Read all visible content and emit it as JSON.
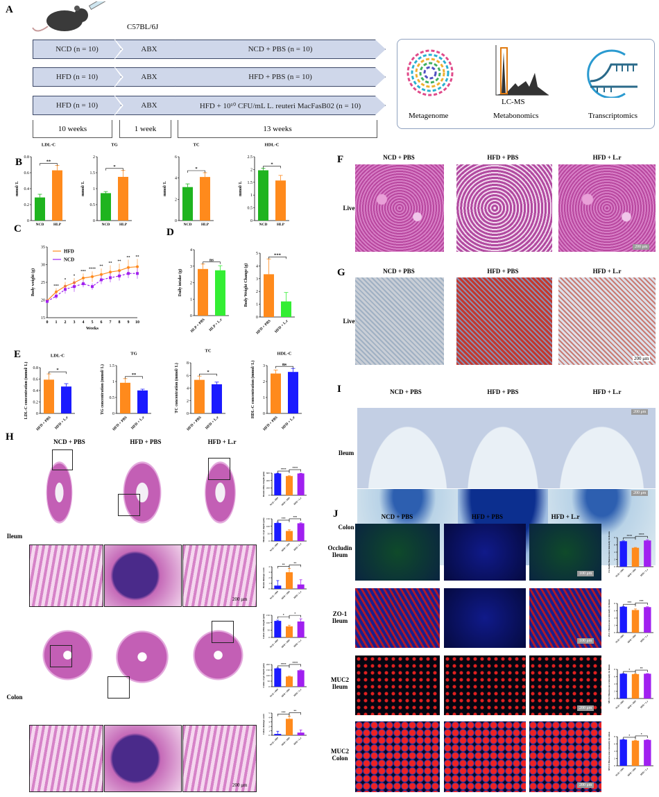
{
  "panels": {
    "A": "A",
    "B": "B",
    "C": "C",
    "D": "D",
    "E": "E",
    "F": "F",
    "G": "G",
    "H": "H",
    "I": "I",
    "J": "J"
  },
  "panelA": {
    "strain": "C57BL/6J",
    "rows": [
      [
        "NCD (n = 10)",
        "ABX",
        "NCD + PBS (n = 10)"
      ],
      [
        "HFD (n = 10)",
        "ABX",
        "HFD + PBS (n = 10)"
      ],
      [
        "HFD (n = 10)",
        "ABX",
        "HFD + 10¹⁰ CFU/mL L. reuteri MacFasB02 (n = 10)"
      ]
    ],
    "durations": [
      "10 weeks",
      "1 week",
      "13 weeks"
    ],
    "omics": {
      "metagenome": "Metagenome",
      "lcms": "LC-MS",
      "metabonomics": "Metabonomics",
      "transcriptomics": "Transcriptomics"
    }
  },
  "groups": {
    "ncd": "NCD + PBS",
    "hfd": "HFD + PBS",
    "lr": "HFD + L.r"
  },
  "tissues": {
    "liver": "Liver",
    "ileum": "Ileum",
    "colon": "Colon",
    "occludin": "Occludin Ileum",
    "zo1": "ZO-1 Ileum",
    "muc2i": "MUC2 Ileum",
    "muc2c": "MUC2 Colon"
  },
  "scales": {
    "f": "200 μm",
    "g": "200 μm",
    "i": "200 μm",
    "h": "200 μm",
    "j1": "100 μm",
    "j2": "100 μm",
    "j3": "200 μm",
    "j4": "200 μm"
  },
  "colors": {
    "green": "#1fb41f",
    "orange": "#ff8a1c",
    "blue": "#1a1aff",
    "purple": "#a020f0",
    "lime": "#33ee33"
  },
  "chart_data": [
    {
      "id": "b1",
      "type": "bar",
      "title": "LDL-C",
      "ylabel": "mmol/ L",
      "categories": [
        "NCD",
        "HLP"
      ],
      "values": [
        0.29,
        0.63
      ],
      "errors": [
        0.04,
        0.06
      ],
      "colors": [
        "#1fb41f",
        "#ff8a1c"
      ],
      "ylim": [
        0,
        0.8
      ],
      "ticks": [
        0,
        0.2,
        0.4,
        0.6,
        0.8
      ],
      "sig": [
        "**"
      ]
    },
    {
      "id": "b2",
      "type": "bar",
      "title": "TG",
      "ylabel": "mmol/ L",
      "categories": [
        "NCD",
        "HLP"
      ],
      "values": [
        0.86,
        1.37
      ],
      "errors": [
        0.05,
        0.2
      ],
      "colors": [
        "#1fb41f",
        "#ff8a1c"
      ],
      "ylim": [
        0,
        2
      ],
      "ticks": [
        0,
        0.5,
        1.0,
        1.5,
        2.0
      ],
      "sig": [
        "*"
      ]
    },
    {
      "id": "b3",
      "type": "bar",
      "title": "TC",
      "ylabel": "mmol/ L",
      "categories": [
        "NCD",
        "HLP"
      ],
      "values": [
        3.15,
        4.1
      ],
      "errors": [
        0.3,
        0.4
      ],
      "colors": [
        "#1fb41f",
        "#ff8a1c"
      ],
      "ylim": [
        0,
        6
      ],
      "ticks": [
        0,
        2,
        4,
        6
      ],
      "sig": [
        "*"
      ]
    },
    {
      "id": "b4",
      "type": "bar",
      "title": "HDL-C",
      "ylabel": "mmol/ L",
      "categories": [
        "NCD",
        "HLP"
      ],
      "values": [
        1.97,
        1.57
      ],
      "errors": [
        0.08,
        0.2
      ],
      "colors": [
        "#1fb41f",
        "#ff8a1c"
      ],
      "ylim": [
        0,
        2.5
      ],
      "ticks": [
        0,
        0.5,
        1.0,
        1.5,
        2.0,
        2.5
      ],
      "sig": [
        "*"
      ]
    },
    {
      "id": "c",
      "type": "line",
      "xlabel": "Weeks",
      "ylabel": "Body weight (g)",
      "x": [
        0,
        1,
        2,
        3,
        4,
        5,
        6,
        7,
        8,
        9,
        10
      ],
      "ylim": [
        15,
        35
      ],
      "ticks": [
        15,
        20,
        25,
        30,
        35
      ],
      "series": [
        {
          "name": "HFD",
          "color": "#ff8a1c",
          "values": [
            19.8,
            22.3,
            23.9,
            24.9,
            26.2,
            26.6,
            27.2,
            27.9,
            28.3,
            29.2,
            29.4
          ],
          "errors": [
            0.5,
            1,
            1.2,
            1.3,
            1.3,
            1.5,
            1.7,
            1.9,
            2,
            2.2,
            2.2
          ]
        },
        {
          "name": "NCD",
          "color": "#a020f0",
          "values": [
            19.6,
            21.1,
            23.0,
            23.8,
            24.6,
            23.8,
            25.7,
            26.3,
            26.8,
            27.5,
            27.5
          ],
          "errors": [
            0.5,
            0.8,
            1.2,
            1.5,
            1,
            0.9,
            1.2,
            1.3,
            1.3,
            1.3,
            1.5
          ]
        }
      ],
      "sig": [
        "",
        "***",
        "*",
        "*",
        "***",
        "****",
        "**",
        "**",
        "**",
        "**",
        "**"
      ],
      "legend": "top-left"
    },
    {
      "id": "d1",
      "type": "bar",
      "ylabel": "Daily intake (g)",
      "categories": [
        "HLP + PBS",
        "HLP + L.r"
      ],
      "values": [
        2.83,
        2.75
      ],
      "errors": [
        0.3,
        0.28
      ],
      "colors": [
        "#ff8a1c",
        "#33ee33"
      ],
      "ylim": [
        0,
        4
      ],
      "ticks": [
        0,
        1,
        2,
        3,
        4
      ],
      "sig": [
        "ns"
      ],
      "rot": true
    },
    {
      "id": "d2",
      "type": "bar",
      "ylabel": "Body Weight Change (g)",
      "categories": [
        "HFD + PBS",
        "HFD + L.r"
      ],
      "values": [
        3.35,
        1.22
      ],
      "errors": [
        1.2,
        0.7
      ],
      "colors": [
        "#ff8a1c",
        "#33ee33"
      ],
      "ylim": [
        0,
        5
      ],
      "ticks": [
        0,
        1,
        2,
        3,
        4,
        5
      ],
      "sig": [
        "***"
      ],
      "rot": true
    },
    {
      "id": "e1",
      "type": "bar",
      "title": "LDL-C",
      "ylabel": "LDL-C concentration (mmol/ L)",
      "categories": [
        "HFD + PBS",
        "HFD + L.r"
      ],
      "values": [
        0.59,
        0.47
      ],
      "errors": [
        0.1,
        0.05
      ],
      "colors": [
        "#ff8a1c",
        "#1a1aff"
      ],
      "ylim": [
        0,
        0.8
      ],
      "ticks": [
        0,
        0.2,
        0.4,
        0.6,
        0.8
      ],
      "sig": [
        "*"
      ],
      "rot": true
    },
    {
      "id": "e2",
      "type": "bar",
      "title": "TG",
      "ylabel": "TG concentration (mmol/ L)",
      "categories": [
        "HFD + PBS",
        "HFD + L.r"
      ],
      "values": [
        0.96,
        0.72
      ],
      "errors": [
        0.13,
        0.04
      ],
      "colors": [
        "#ff8a1c",
        "#1a1aff"
      ],
      "ylim": [
        0,
        1.5
      ],
      "ticks": [
        0,
        0.5,
        1.0,
        1.5
      ],
      "sig": [
        "**"
      ],
      "rot": true
    },
    {
      "id": "e3",
      "type": "bar",
      "title": "TC",
      "ylabel": "TC concentration (mmol/ L)",
      "categories": [
        "HFD + PBS",
        "HFD + L.r"
      ],
      "values": [
        5.3,
        4.6
      ],
      "errors": [
        0.6,
        0.35
      ],
      "colors": [
        "#ff8a1c",
        "#1a1aff"
      ],
      "ylim": [
        0,
        8
      ],
      "ticks": [
        0,
        2,
        4,
        6,
        8
      ],
      "sig": [
        "*"
      ],
      "rot": true
    },
    {
      "id": "e4",
      "type": "bar",
      "title": "HDL-C",
      "ylabel": "HDL-C concentration (mmol/ L)",
      "categories": [
        "HFD + PBS",
        "HFD + L.r"
      ],
      "values": [
        2.5,
        2.6
      ],
      "errors": [
        0.22,
        0.22
      ],
      "colors": [
        "#ff8a1c",
        "#1a1aff"
      ],
      "ylim": [
        0,
        3
      ],
      "ticks": [
        0,
        1,
        2,
        3
      ],
      "sig": [
        "ns"
      ],
      "rot": true
    },
    {
      "id": "h1",
      "type": "bar",
      "ylabel": "Ileum villus length (μm)",
      "categories": [
        "NCD + PBS",
        "HFD + PBS",
        "HFD + L.r"
      ],
      "values": [
        590,
        520,
        590
      ],
      "errors": [
        8,
        8,
        6
      ],
      "colors": [
        "#1a1aff",
        "#ff8a1c",
        "#a020f0"
      ],
      "ylim": [
        0,
        600
      ],
      "ticks": [
        0,
        200,
        400,
        600
      ],
      "sig": [
        "****",
        "****"
      ],
      "rot": true,
      "small": true
    },
    {
      "id": "h2",
      "type": "bar",
      "ylabel": "Ileum crypt depth (μm)",
      "categories": [
        "NCD + PBS",
        "HFD + PBS",
        "HFD + L.r"
      ],
      "values": [
        122,
        68,
        120
      ],
      "errors": [
        5,
        8,
        3
      ],
      "colors": [
        "#1a1aff",
        "#ff8a1c",
        "#a020f0"
      ],
      "ylim": [
        0,
        150
      ],
      "ticks": [
        0,
        50,
        100,
        150
      ],
      "sig": [
        "***",
        "***"
      ],
      "rot": true,
      "small": true
    },
    {
      "id": "h3",
      "type": "bar",
      "ylabel": "Ileum damage score",
      "categories": [
        "NCD + PBS",
        "HFD + PBS",
        "HFD + L.r"
      ],
      "values": [
        0.6,
        3.0,
        0.8
      ],
      "errors": [
        0.9,
        0.7,
        0.85
      ],
      "colors": [
        "#1a1aff",
        "#ff8a1c",
        "#a020f0"
      ],
      "ylim": [
        0,
        4
      ],
      "ticks": [
        0,
        1,
        2,
        3,
        4
      ],
      "sig": [
        "**",
        "**"
      ],
      "rot": true,
      "small": true
    },
    {
      "id": "h4",
      "type": "bar",
      "ylabel": "Colon villus length (μm)",
      "categories": [
        "NCD + PBS",
        "HFD + PBS",
        "HFD + L.r"
      ],
      "values": [
        112,
        75,
        108
      ],
      "errors": [
        5,
        8,
        18
      ],
      "colors": [
        "#1a1aff",
        "#ff8a1c",
        "#a020f0"
      ],
      "ylim": [
        0,
        150
      ],
      "ticks": [
        0,
        50,
        100,
        150
      ],
      "sig": [
        "*",
        "*"
      ],
      "rot": true,
      "small": true
    },
    {
      "id": "h5",
      "type": "bar",
      "ylabel": "Colon crypt depth (μm)",
      "categories": [
        "NCD + PBS",
        "HFD + PBS",
        "HFD + L.r"
      ],
      "values": [
        165,
        92,
        148
      ],
      "errors": [
        4,
        3,
        4
      ],
      "colors": [
        "#1a1aff",
        "#ff8a1c",
        "#a020f0"
      ],
      "ylim": [
        0,
        200
      ],
      "ticks": [
        0,
        50,
        100,
        150,
        200
      ],
      "sig": [
        "****",
        "****"
      ],
      "rot": true,
      "small": true
    },
    {
      "id": "h6",
      "type": "bar",
      "ylabel": "Colon damage score",
      "categories": [
        "NCD + PBS",
        "HFD + PBS",
        "HFD + L.r"
      ],
      "values": [
        0.3,
        3.7,
        0.6
      ],
      "errors": [
        0.6,
        0.6,
        0.6
      ],
      "colors": [
        "#1a1aff",
        "#ff8a1c",
        "#a020f0"
      ],
      "ylim": [
        0,
        5
      ],
      "ticks": [
        0,
        1,
        2,
        3,
        4,
        5
      ],
      "sig": [
        "***",
        "**"
      ],
      "rot": true,
      "small": true
    },
    {
      "id": "j1",
      "type": "bar",
      "ylabel": "Occludin fluorescence intensity in ileum",
      "categories": [
        "NCD + PBS",
        "HFD + PBS",
        "HFD + L.r"
      ],
      "values": [
        7.0,
        5.2,
        7.2
      ],
      "errors": [
        0.1,
        0.1,
        0.2
      ],
      "colors": [
        "#1a1aff",
        "#ff8a1c",
        "#a020f0"
      ],
      "ylim": [
        0,
        8
      ],
      "ticks": [
        0,
        2,
        4,
        6,
        8
      ],
      "sig": [
        "****",
        "****"
      ],
      "rot": true,
      "small": true
    },
    {
      "id": "j2",
      "type": "bar",
      "ylabel": "ZO-1 fluorescence intensity in ileum",
      "categories": [
        "NCD + PBS",
        "HFD + PBS",
        "HFD + L.r"
      ],
      "values": [
        7.1,
        6.2,
        7.0
      ],
      "errors": [
        0.1,
        0.3,
        0.1
      ],
      "colors": [
        "#1a1aff",
        "#ff8a1c",
        "#a020f0"
      ],
      "ylim": [
        0,
        8
      ],
      "ticks": [
        0,
        2,
        4,
        6,
        8
      ],
      "sig": [
        "***",
        "***"
      ],
      "rot": true,
      "small": true
    },
    {
      "id": "j3",
      "type": "bar",
      "ylabel": "MUC2 fluorescence intensity in ileum",
      "categories": [
        "NCD + PBS",
        "HFD + PBS",
        "HFD + L.r"
      ],
      "values": [
        6.8,
        6.7,
        6.8
      ],
      "errors": [
        0.05,
        0.05,
        0.05
      ],
      "colors": [
        "#1a1aff",
        "#ff8a1c",
        "#a020f0"
      ],
      "ylim": [
        0,
        8
      ],
      "ticks": [
        0,
        2,
        4,
        6,
        8
      ],
      "sig": [
        "*",
        "**"
      ],
      "rot": true,
      "small": true
    },
    {
      "id": "j4",
      "type": "bar",
      "ylabel": "MUC2 fluorescence intensity in colon",
      "categories": [
        "NCD + PBS",
        "HFD + PBS",
        "HFD + L.r"
      ],
      "values": [
        7.2,
        6.9,
        7.1
      ],
      "errors": [
        0.05,
        0.1,
        0.05
      ],
      "colors": [
        "#1a1aff",
        "#ff8a1c",
        "#a020f0"
      ],
      "ylim": [
        0,
        8
      ],
      "ticks": [
        0,
        2,
        4,
        6,
        8
      ],
      "sig": [
        "*",
        "*"
      ],
      "rot": true,
      "small": true
    }
  ]
}
